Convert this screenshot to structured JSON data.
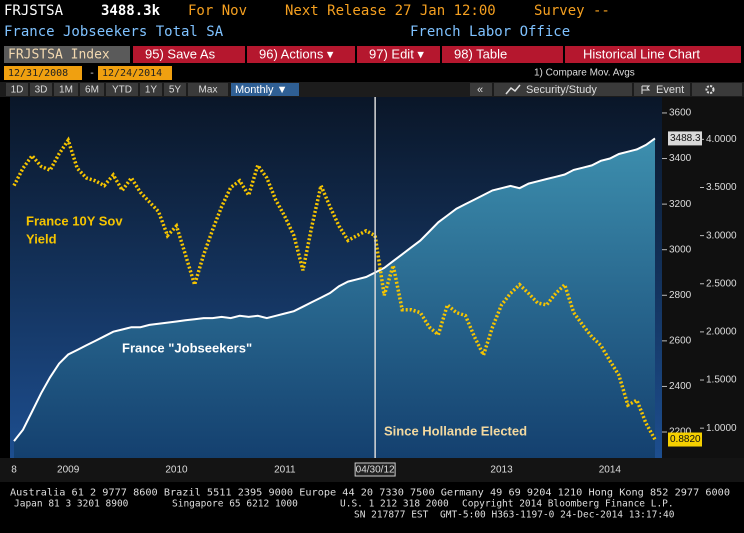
{
  "header": {
    "ticker": "FRJSTSA",
    "last": "3488.3k",
    "period": "For Nov",
    "next_release": "Next Release 27 Jan 12:00",
    "survey": "Survey --",
    "name": "France Jobseekers Total SA",
    "source": "French Labor Office"
  },
  "toolbar": {
    "security": "FRJSTSA Index",
    "buttons": [
      "95) Save As",
      "96) Actions ▾",
      "97) Edit ▾",
      "98) Table"
    ],
    "view": "Historical Line Chart",
    "start_date": "12/31/2008",
    "date_separator": "-",
    "end_date": "12/24/2014",
    "compare": "1) Compare Mov. Avgs",
    "ranges": [
      "1D",
      "3D",
      "1M",
      "6M",
      "YTD",
      "1Y",
      "5Y",
      "Max"
    ],
    "frequency": "Monthly ▼",
    "collapse": "«",
    "security_study": "Security/Study",
    "event": "Event"
  },
  "chart_data": {
    "type": "line",
    "categories": [
      "8",
      null,
      null,
      null,
      null,
      null,
      "2009",
      null,
      null,
      null,
      null,
      null,
      null,
      null,
      null,
      null,
      null,
      null,
      "2010",
      null,
      null,
      null,
      null,
      null,
      null,
      null,
      null,
      null,
      null,
      null,
      "2011",
      null,
      null,
      null,
      null,
      null,
      null,
      null,
      null,
      null,
      "04/30/12",
      null,
      null,
      null,
      null,
      null,
      null,
      null,
      null,
      null,
      null,
      null,
      null,
      null,
      "2013",
      null,
      null,
      null,
      null,
      null,
      null,
      null,
      null,
      null,
      null,
      null,
      "2014",
      null,
      null,
      null,
      null,
      null
    ],
    "series": [
      {
        "color": "#ffffff",
        "values": [
          2160,
          2210,
          2290,
          2370,
          2440,
          2500,
          2540,
          2560,
          2580,
          2600,
          2620,
          2640,
          2650,
          2660,
          2660,
          2670,
          2675,
          2680,
          2685,
          2690,
          2695,
          2700,
          2700,
          2705,
          2700,
          2710,
          2705,
          2710,
          2700,
          2710,
          2720,
          2730,
          2750,
          2770,
          2790,
          2810,
          2840,
          2860,
          2870,
          2880,
          2900,
          2920,
          2950,
          2980,
          3010,
          3040,
          3080,
          3120,
          3150,
          3180,
          3200,
          3220,
          3240,
          3260,
          3270,
          3280,
          3270,
          3290,
          3300,
          3310,
          3320,
          3330,
          3350,
          3360,
          3370,
          3390,
          3400,
          3420,
          3430,
          3440,
          3460,
          3488.3
        ]
      },
      {
        "color": "#f5c400",
        "axis": "y2",
        "values": [
          3.52,
          3.7,
          3.83,
          3.72,
          3.68,
          3.85,
          3.99,
          3.7,
          3.6,
          3.57,
          3.52,
          3.63,
          3.47,
          3.6,
          3.45,
          3.35,
          3.25,
          3.0,
          3.1,
          2.8,
          2.49,
          2.8,
          3.06,
          3.3,
          3.5,
          3.57,
          3.42,
          3.73,
          3.6,
          3.37,
          3.2,
          3.0,
          2.64,
          3.1,
          3.52,
          3.3,
          3.1,
          2.95,
          3.0,
          3.05,
          3.0,
          2.38,
          2.69,
          2.23,
          2.23,
          2.2,
          2.05,
          1.97,
          2.28,
          2.2,
          2.17,
          1.95,
          1.76,
          2.05,
          2.28,
          2.4,
          2.49,
          2.4,
          2.3,
          2.28,
          2.4,
          2.49,
          2.2,
          2.07,
          1.95,
          1.86,
          1.7,
          1.55,
          1.24,
          1.29,
          1.05,
          0.882
        ],
        "value_labels": [
          null,
          null,
          null,
          null,
          null,
          null,
          null,
          null,
          null,
          null,
          null,
          null,
          null,
          null,
          null,
          null,
          null,
          null,
          null,
          null,
          null,
          null,
          null,
          null,
          null,
          null,
          null,
          null,
          null,
          null,
          null,
          null,
          null,
          null,
          null,
          null,
          null,
          null,
          null,
          null,
          null,
          null,
          null,
          null,
          null,
          null,
          null,
          null,
          null,
          null,
          null,
          null,
          null,
          null,
          null,
          null,
          null,
          null,
          null,
          null,
          null,
          null,
          null,
          null,
          null,
          null,
          null,
          null,
          null,
          null,
          null,
          "0.8820"
        ]
      }
    ],
    "ylim": [
      2086,
      3670
    ],
    "yticks": [
      2200,
      2400,
      2600,
      2800,
      3000,
      3200,
      3400,
      3600
    ],
    "y2lim": [
      0.69,
      4.44
    ],
    "y2ticks": [
      {
        "value": 1,
        "label": "1.0000"
      },
      {
        "value": 1.5,
        "label": "1.5000"
      },
      {
        "value": 2,
        "label": "2.0000"
      },
      {
        "value": 2.5,
        "label": "2.5000"
      },
      {
        "value": 3,
        "label": "3.0000"
      },
      {
        "value": 3.5,
        "label": "3.5000"
      },
      {
        "value": 4,
        "label": "4.0000"
      }
    ],
    "annotations": [
      "France 10Y Sov",
      "Yield",
      "France \"Jobseekers\"",
      "Since Hollande Elected"
    ]
  },
  "footer": {
    "line1": "Australia 61 2 9777 8600 Brazil 5511 2395 9000 Europe 44 20 7330 7500 Germany 49 69 9204 1210 Hong Kong 852 2977 6000",
    "line2": [
      "Japan 81 3 3201 8900",
      "Singapore 65 6212 1000",
      "U.S. 1 212 318 2000",
      "Copyright 2014 Bloomberg Finance L.P."
    ],
    "line3": [
      "SN 217877 EST",
      "GMT-5:00 H363-1197-0 24-Dec-2014 13:17:40"
    ]
  }
}
